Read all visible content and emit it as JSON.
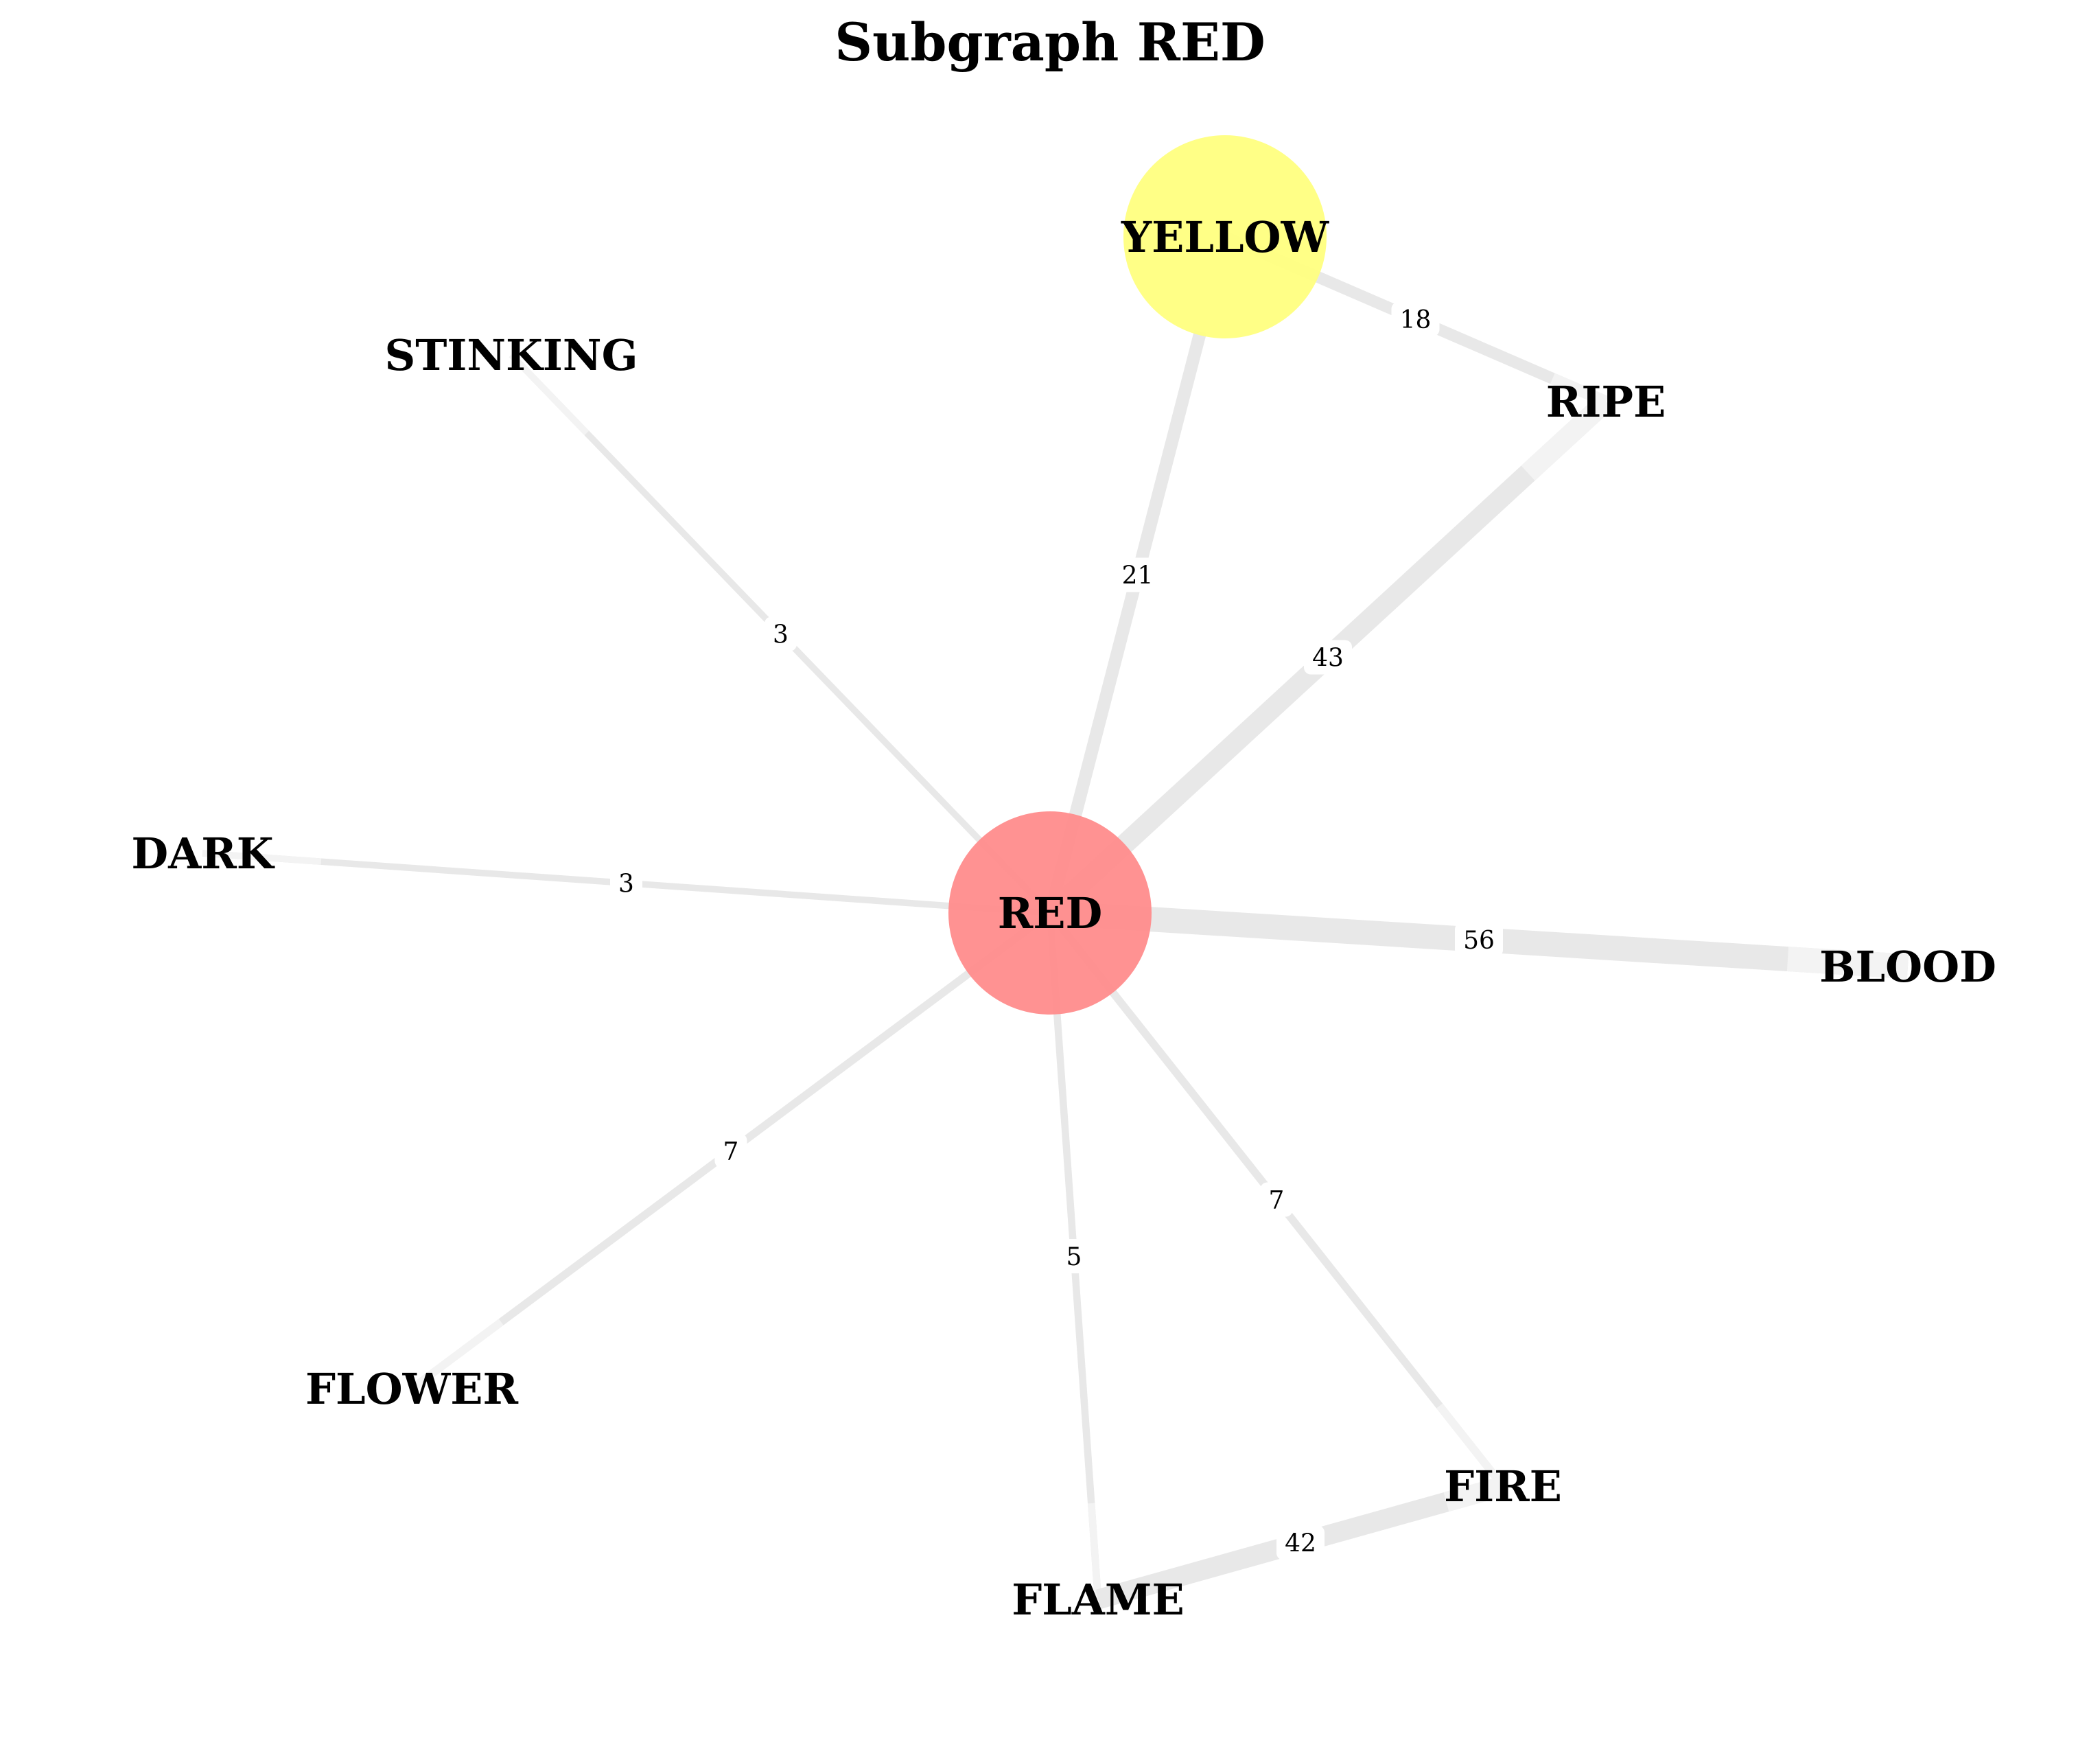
{
  "title": "Subgraph RED",
  "colors": {
    "center_node": "#ff8c8c",
    "neighbor_highlight": "#ffff80",
    "edge": "#e8e8e8",
    "edge_light": "#f3f3f3"
  },
  "nodes": [
    {
      "id": "RED",
      "label": "RED",
      "role": "center"
    },
    {
      "id": "YELLOW",
      "label": "YELLOW",
      "role": "highlight"
    },
    {
      "id": "STINKING",
      "label": "STINKING",
      "role": "plain"
    },
    {
      "id": "RIPE",
      "label": "RIPE",
      "role": "plain"
    },
    {
      "id": "DARK",
      "label": "DARK",
      "role": "plain"
    },
    {
      "id": "BLOOD",
      "label": "BLOOD",
      "role": "plain"
    },
    {
      "id": "FLOWER",
      "label": "FLOWER",
      "role": "plain"
    },
    {
      "id": "FIRE",
      "label": "FIRE",
      "role": "plain"
    },
    {
      "id": "FLAME",
      "label": "FLAME",
      "role": "plain"
    }
  ],
  "edges": [
    {
      "source": "RED",
      "target": "YELLOW",
      "weight": 21
    },
    {
      "source": "YELLOW",
      "target": "RIPE",
      "weight": 18
    },
    {
      "source": "RED",
      "target": "STINKING",
      "weight": 3
    },
    {
      "source": "RED",
      "target": "RIPE",
      "weight": 43
    },
    {
      "source": "RED",
      "target": "DARK",
      "weight": 3
    },
    {
      "source": "RED",
      "target": "BLOOD",
      "weight": 56
    },
    {
      "source": "RED",
      "target": "FLOWER",
      "weight": 7
    },
    {
      "source": "RED",
      "target": "FLAME",
      "weight": 5
    },
    {
      "source": "RED",
      "target": "FIRE",
      "weight": 7
    },
    {
      "source": "FLAME",
      "target": "FIRE",
      "weight": 42
    }
  ]
}
